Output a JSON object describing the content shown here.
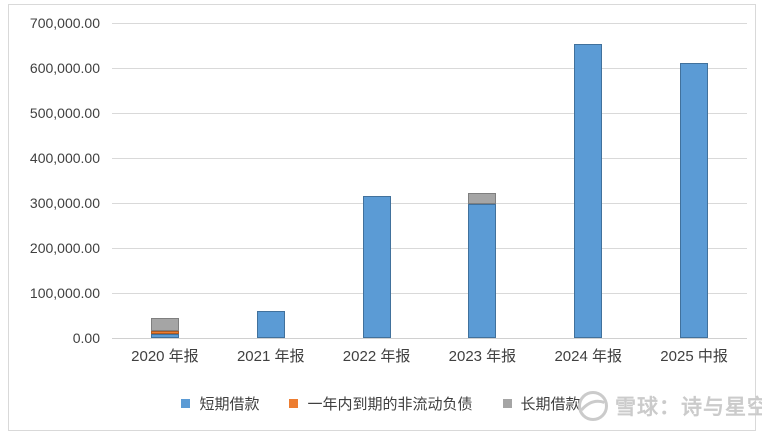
{
  "chart_data": {
    "type": "bar",
    "stacked": true,
    "title": "",
    "xlabel": "",
    "ylabel": "",
    "categories": [
      "2020 年报",
      "2021 年报",
      "2022 年报",
      "2023 年报",
      "2024 年报",
      "2025 中报"
    ],
    "series": [
      {
        "name": "短期借款",
        "color": "#5B9BD5",
        "border": "#41719C",
        "values": [
          9000,
          60000,
          315000,
          298000,
          653000,
          611000
        ]
      },
      {
        "name": "一年内到期的非流动负债",
        "color": "#ED7D31",
        "border": "#AE5A21",
        "values": [
          7000,
          0,
          0,
          0,
          0,
          0
        ]
      },
      {
        "name": "长期借款",
        "color": "#A5A5A5",
        "border": "#7F7F7F",
        "values": [
          28000,
          0,
          0,
          24000,
          0,
          0
        ]
      }
    ],
    "ylim": [
      0,
      700000
    ],
    "ytick_step": 100000,
    "ytick_labels": [
      "0.00",
      "100,000.00",
      "200,000.00",
      "300,000.00",
      "400,000.00",
      "500,000.00",
      "600,000.00",
      "700,000.00"
    ],
    "grid": true,
    "legend_position": "bottom"
  },
  "watermark": {
    "logo": "snowball-icon",
    "text": "雪球：诗与星空"
  },
  "colors": {
    "background": "#FFFFFF",
    "grid": "#D9D9D9",
    "text": "#404040",
    "frame_border": "#D9D9D9",
    "watermark": "#CBCBCB"
  }
}
